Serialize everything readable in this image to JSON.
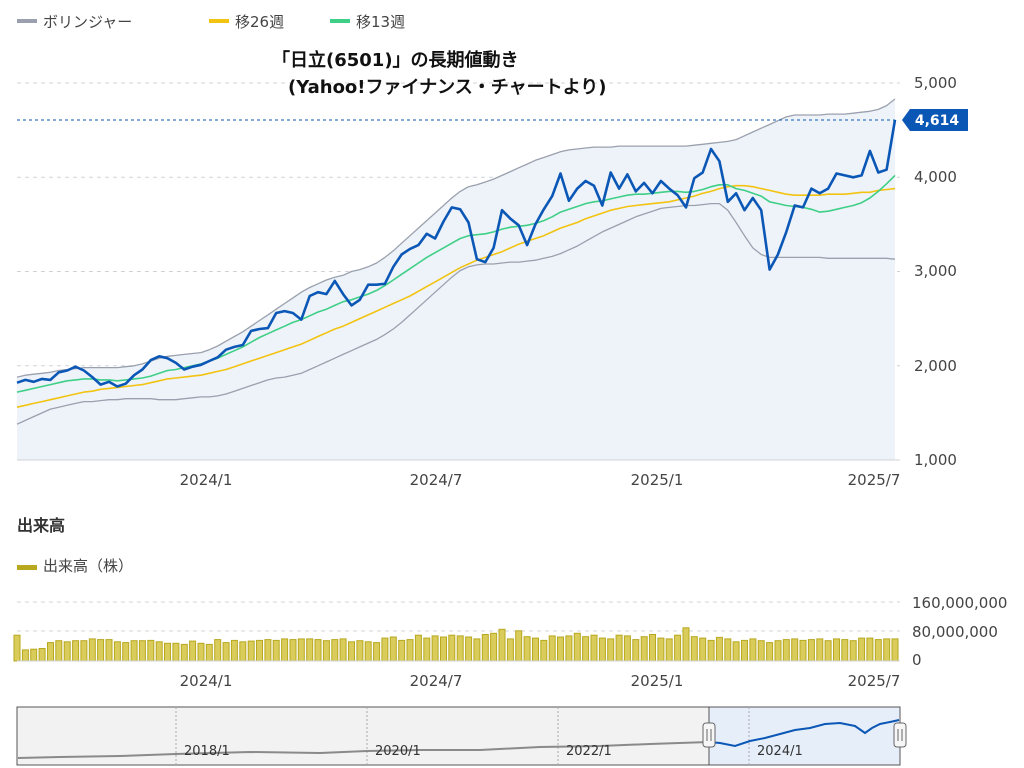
{
  "legend": {
    "items": [
      {
        "label": "ボリンジャー",
        "color": "#9aa0ad"
      },
      {
        "label": "移26週",
        "color": "#f2c311"
      },
      {
        "label": "移13週",
        "color": "#3fcf86"
      }
    ]
  },
  "title": {
    "line1": "「日立(6501)」の長期値動き",
    "line2": "(Yahoo!ファイナンス・チャートより)"
  },
  "price_axis": {
    "ticks": [
      "5,000",
      "4,000",
      "3,000",
      "2,000",
      "1,000"
    ],
    "current_label": "4,614"
  },
  "time_axis": {
    "ticks": [
      "2024/1",
      "2024/7",
      "2025/1",
      "2025/7"
    ]
  },
  "volume_section": {
    "heading": "出来高",
    "legend_label": "出来高（株）",
    "ticks": [
      "160,000,000",
      "80,000,000",
      "0"
    ]
  },
  "navigator": {
    "ticks": [
      "2018/1",
      "2020/1",
      "2022/1",
      "2024/1"
    ]
  },
  "colors": {
    "price": "#0b57b6",
    "band": "#9aa0ad",
    "ma26": "#f2c311",
    "ma13": "#3fcf86",
    "volume": "#b8a81e",
    "area": "#eef3fa"
  },
  "chart_data": {
    "type": "line",
    "x_unit": "week",
    "x_start": "2023/10",
    "y_range": [
      1000,
      5000
    ],
    "current_value": 4614,
    "series": [
      {
        "name": "株価",
        "values": [
          1820,
          1850,
          1830,
          1860,
          1850,
          1930,
          1950,
          1990,
          1950,
          1880,
          1800,
          1830,
          1780,
          1810,
          1900,
          1960,
          2060,
          2100,
          2080,
          2030,
          1960,
          1990,
          2010,
          2050,
          2090,
          2170,
          2200,
          2220,
          2370,
          2390,
          2400,
          2560,
          2580,
          2560,
          2490,
          2740,
          2780,
          2760,
          2900,
          2760,
          2640,
          2700,
          2860,
          2860,
          2870,
          3050,
          3180,
          3240,
          3280,
          3400,
          3350,
          3530,
          3680,
          3660,
          3520,
          3130,
          3100,
          3250,
          3650,
          3560,
          3490,
          3280,
          3500,
          3660,
          3800,
          4040,
          3750,
          3880,
          3960,
          3910,
          3700,
          4050,
          3880,
          4030,
          3850,
          3940,
          3830,
          3960,
          3880,
          3810,
          3680,
          3990,
          4050,
          4300,
          4170,
          3740,
          3830,
          3650,
          3780,
          3650,
          3020,
          3180,
          3420,
          3700,
          3680,
          3880,
          3830,
          3880,
          4040,
          4020,
          4000,
          4020,
          4280,
          4050,
          4080,
          4610
        ]
      },
      {
        "name": "移26週",
        "values": [
          1560,
          1580,
          1600,
          1620,
          1640,
          1660,
          1680,
          1700,
          1720,
          1730,
          1750,
          1760,
          1770,
          1780,
          1790,
          1800,
          1820,
          1840,
          1860,
          1870,
          1880,
          1890,
          1900,
          1920,
          1940,
          1960,
          1990,
          2020,
          2050,
          2080,
          2110,
          2140,
          2170,
          2200,
          2230,
          2270,
          2310,
          2350,
          2390,
          2420,
          2460,
          2500,
          2540,
          2580,
          2620,
          2660,
          2700,
          2740,
          2790,
          2840,
          2890,
          2940,
          2990,
          3040,
          3080,
          3120,
          3150,
          3180,
          3210,
          3250,
          3290,
          3320,
          3350,
          3380,
          3420,
          3460,
          3490,
          3520,
          3560,
          3590,
          3620,
          3650,
          3670,
          3690,
          3700,
          3710,
          3720,
          3730,
          3740,
          3760,
          3780,
          3800,
          3830,
          3850,
          3880,
          3900,
          3910,
          3910,
          3900,
          3880,
          3860,
          3840,
          3820,
          3810,
          3810,
          3810,
          3810,
          3820,
          3820,
          3820,
          3830,
          3840,
          3840,
          3860,
          3870,
          3880
        ]
      },
      {
        "name": "移13週",
        "values": [
          1720,
          1740,
          1760,
          1780,
          1800,
          1820,
          1840,
          1850,
          1860,
          1860,
          1850,
          1850,
          1840,
          1850,
          1860,
          1870,
          1890,
          1920,
          1950,
          1960,
          1980,
          2000,
          2020,
          2050,
          2080,
          2120,
          2160,
          2200,
          2250,
          2300,
          2340,
          2380,
          2420,
          2460,
          2490,
          2530,
          2570,
          2600,
          2640,
          2680,
          2700,
          2730,
          2760,
          2800,
          2850,
          2910,
          2970,
          3030,
          3090,
          3150,
          3200,
          3250,
          3300,
          3350,
          3380,
          3390,
          3400,
          3420,
          3450,
          3470,
          3480,
          3490,
          3510,
          3540,
          3580,
          3630,
          3660,
          3690,
          3720,
          3740,
          3750,
          3770,
          3790,
          3810,
          3820,
          3820,
          3830,
          3840,
          3850,
          3850,
          3840,
          3850,
          3870,
          3900,
          3920,
          3920,
          3880,
          3860,
          3830,
          3800,
          3740,
          3720,
          3700,
          3690,
          3680,
          3660,
          3630,
          3640,
          3660,
          3680,
          3700,
          3730,
          3780,
          3850,
          3930,
          4020
        ]
      },
      {
        "name": "ボリンジャー上限",
        "values": [
          1880,
          1900,
          1910,
          1920,
          1930,
          1950,
          1960,
          1970,
          1980,
          1980,
          1980,
          1980,
          1980,
          1990,
          2000,
          2020,
          2050,
          2080,
          2100,
          2110,
          2120,
          2130,
          2140,
          2170,
          2210,
          2260,
          2310,
          2360,
          2420,
          2480,
          2540,
          2600,
          2660,
          2720,
          2780,
          2830,
          2870,
          2910,
          2940,
          2960,
          3000,
          3020,
          3050,
          3090,
          3150,
          3220,
          3300,
          3380,
          3460,
          3540,
          3620,
          3700,
          3780,
          3850,
          3900,
          3920,
          3950,
          3980,
          4020,
          4060,
          4100,
          4140,
          4180,
          4210,
          4240,
          4270,
          4290,
          4300,
          4310,
          4320,
          4320,
          4320,
          4330,
          4330,
          4330,
          4330,
          4330,
          4330,
          4330,
          4330,
          4330,
          4340,
          4350,
          4360,
          4370,
          4380,
          4400,
          4440,
          4480,
          4520,
          4560,
          4600,
          4640,
          4660,
          4660,
          4660,
          4660,
          4670,
          4670,
          4670,
          4680,
          4690,
          4700,
          4720,
          4760,
          4830
        ]
      },
      {
        "name": "ボリンジャー下限",
        "values": [
          1380,
          1420,
          1460,
          1500,
          1540,
          1560,
          1580,
          1600,
          1620,
          1620,
          1630,
          1640,
          1640,
          1650,
          1650,
          1650,
          1650,
          1640,
          1640,
          1640,
          1650,
          1660,
          1670,
          1670,
          1680,
          1700,
          1730,
          1760,
          1790,
          1820,
          1850,
          1870,
          1880,
          1900,
          1920,
          1960,
          2000,
          2040,
          2080,
          2120,
          2160,
          2200,
          2240,
          2280,
          2330,
          2390,
          2460,
          2540,
          2620,
          2700,
          2780,
          2860,
          2940,
          3010,
          3050,
          3070,
          3080,
          3080,
          3090,
          3100,
          3100,
          3110,
          3120,
          3140,
          3160,
          3190,
          3230,
          3270,
          3320,
          3370,
          3420,
          3460,
          3500,
          3540,
          3580,
          3610,
          3640,
          3670,
          3680,
          3690,
          3700,
          3700,
          3710,
          3720,
          3720,
          3650,
          3520,
          3380,
          3250,
          3180,
          3150,
          3150,
          3150,
          3150,
          3150,
          3150,
          3150,
          3140,
          3140,
          3140,
          3140,
          3140,
          3140,
          3140,
          3140,
          3130
        ]
      },
      {
        "name": "出来高（株）",
        "values": [
          70,
          30,
          32,
          34,
          50,
          55,
          52,
          55,
          55,
          60,
          58,
          58,
          52,
          50,
          55,
          55,
          56,
          52,
          48,
          48,
          45,
          54,
          48,
          45,
          58,
          50,
          56,
          52,
          54,
          56,
          58,
          56,
          60,
          58,
          60,
          60,
          58,
          55,
          58,
          60,
          52,
          55,
          52,
          50,
          62,
          65,
          56,
          58,
          70,
          62,
          68,
          65,
          70,
          68,
          65,
          60,
          72,
          75,
          86,
          60,
          82,
          66,
          62,
          56,
          68,
          65,
          68,
          75,
          66,
          70,
          62,
          60,
          70,
          68,
          58,
          66,
          72,
          62,
          60,
          70,
          90,
          66,
          62,
          56,
          64,
          60,
          52,
          56,
          60,
          55,
          50,
          55,
          58,
          60,
          56,
          58,
          60,
          55,
          60,
          58,
          55,
          62,
          62,
          58,
          60,
          60
        ]
      }
    ]
  }
}
